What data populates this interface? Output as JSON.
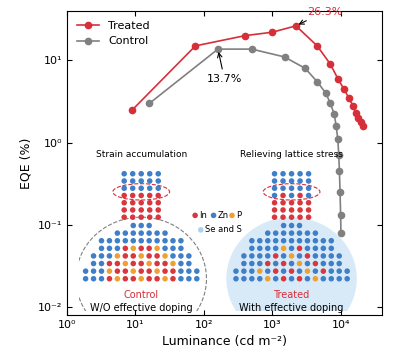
{
  "chart_data": {
    "type": "line",
    "x_label": "Luminance (cd m⁻²)",
    "y_label": "EQE (%)",
    "log": true,
    "legend": "upper left",
    "xlim": [
      1,
      40000
    ],
    "ylim": [
      0.008,
      40
    ],
    "xticks": [
      {
        "value": 1,
        "label": "10⁰"
      },
      {
        "value": 10,
        "label": "10¹"
      },
      {
        "value": 100,
        "label": "10²"
      },
      {
        "value": 1000,
        "label": "10³"
      },
      {
        "value": 10000,
        "label": "10⁴"
      }
    ],
    "yticks": [
      {
        "value": 0.01,
        "label": "10⁻²"
      },
      {
        "value": 0.1,
        "label": "10⁻¹"
      },
      {
        "value": 1,
        "label": "10⁰"
      },
      {
        "value": 10,
        "label": "10¹"
      }
    ],
    "series": [
      {
        "name": "Treated",
        "color": "#d62f3a",
        "marker": "o",
        "line_style": "solid",
        "x": [
          9,
          75,
          400,
          1000,
          2200,
          4500,
          7000,
          9000,
          11000,
          13000,
          15000,
          16500,
          18000,
          19500,
          21000
        ],
        "values": [
          2.5,
          15,
          20,
          22,
          26.3,
          15,
          9,
          6,
          4.5,
          3.5,
          2.8,
          2.3,
          2.0,
          1.8,
          1.6
        ]
      },
      {
        "name": "Control",
        "color": "#808080",
        "marker": "o",
        "line_style": "solid",
        "x": [
          16,
          160,
          500,
          1500,
          3000,
          4500,
          6000,
          7000,
          8000,
          8500,
          9000,
          9300,
          9500,
          9700,
          9900,
          10000
        ],
        "values": [
          3.0,
          13.7,
          13.7,
          11,
          8,
          5.5,
          4,
          3,
          2.2,
          1.6,
          1.1,
          0.7,
          0.45,
          0.25,
          0.13,
          0.08
        ]
      }
    ],
    "annotations": [
      {
        "text": "26.3%",
        "x": 2200,
        "y": 26.3,
        "color": "#d62f3a"
      },
      {
        "text": "13.7%",
        "x": 160,
        "y": 13.7,
        "color": "#000000"
      }
    ]
  },
  "inset": {
    "atoms": [
      {
        "name": "In",
        "color": "#d9363e"
      },
      {
        "name": "Zn",
        "color": "#3f7fc8"
      },
      {
        "name": "P",
        "color": "#f0a030"
      },
      {
        "name": "Se and S",
        "color": "#a9d1f0"
      }
    ],
    "control": {
      "note": "Strain accumulation",
      "label": "Control",
      "caption": "W/O effective doping"
    },
    "treated": {
      "note": "Relieving lattice stress",
      "label": "Treated",
      "caption": "With effective doping"
    }
  }
}
